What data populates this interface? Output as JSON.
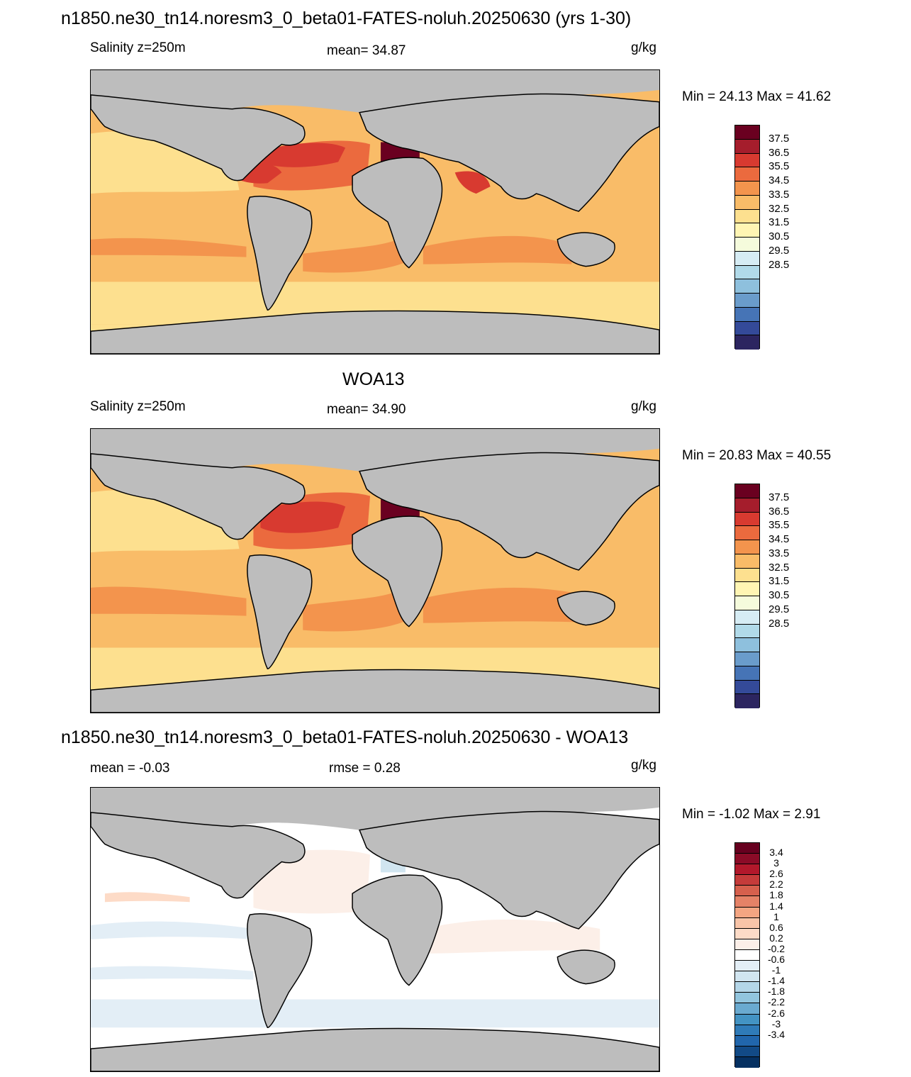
{
  "panels": [
    {
      "title": "n1850.ne30_tn14.noresm3_0_beta01-FATES-noluh.20250630 (yrs 1-30)",
      "left_label": "Salinity z=250m",
      "center_label": "mean=  34.87",
      "units": "g/kg",
      "minmax": "Min =  24.13 Max =  41.62",
      "colorbar": {
        "colors": [
          "#6a0020",
          "#a51d2c",
          "#d83a30",
          "#eb6a3e",
          "#f3944d",
          "#f9bc68",
          "#fde08f",
          "#fff5b3",
          "#f5fbdc",
          "#d6ecf4",
          "#b1dae9",
          "#8ec0dd",
          "#6a9ccb",
          "#4674b6",
          "#344a99",
          "#2c2560"
        ],
        "labels": [
          "37.5",
          "36.5",
          "35.5",
          "34.5",
          "33.5",
          "32.5",
          "31.5",
          "30.5",
          "29.5",
          "28.5"
        ]
      }
    },
    {
      "title": "WOA13",
      "left_label": "Salinity z=250m",
      "center_label": "mean=  34.90",
      "units": "g/kg",
      "minmax": "Min =  20.83 Max =  40.55",
      "colorbar": {
        "colors": [
          "#6a0020",
          "#a51d2c",
          "#d83a30",
          "#eb6a3e",
          "#f3944d",
          "#f9bc68",
          "#fde08f",
          "#fff5b3",
          "#f5fbdc",
          "#d6ecf4",
          "#b1dae9",
          "#8ec0dd",
          "#6a9ccb",
          "#4674b6",
          "#344a99",
          "#2c2560"
        ],
        "labels": [
          "37.5",
          "36.5",
          "35.5",
          "34.5",
          "33.5",
          "32.5",
          "31.5",
          "30.5",
          "29.5",
          "28.5"
        ]
      }
    },
    {
      "title": "n1850.ne30_tn14.noresm3_0_beta01-FATES-noluh.20250630 - WOA13",
      "left_label": "mean =  -0.03",
      "center_label": "rmse =   0.28",
      "units": "g/kg",
      "minmax": "Min =  -1.02 Max =   2.91",
      "colorbar": {
        "colors": [
          "#67001f",
          "#8b0b27",
          "#b2182b",
          "#c53b3a",
          "#d6604d",
          "#e58267",
          "#f4a582",
          "#f8c4a8",
          "#fddbc7",
          "#fcefe8",
          "#ffffff",
          "#e3eef6",
          "#d1e5f0",
          "#b4d6e8",
          "#92c5de",
          "#6aaad0",
          "#4393c3",
          "#2f7bb8",
          "#2166ac",
          "#124a86",
          "#053061"
        ],
        "labels": [
          "3.4",
          "3",
          "2.6",
          "2.2",
          "1.8",
          "1.4",
          "1",
          "0.6",
          "0.2",
          "-0.2",
          "-0.6",
          "-1",
          "-1.4",
          "-1.8",
          "-2.2",
          "-2.6",
          "-3",
          "-3.4"
        ]
      }
    }
  ]
}
